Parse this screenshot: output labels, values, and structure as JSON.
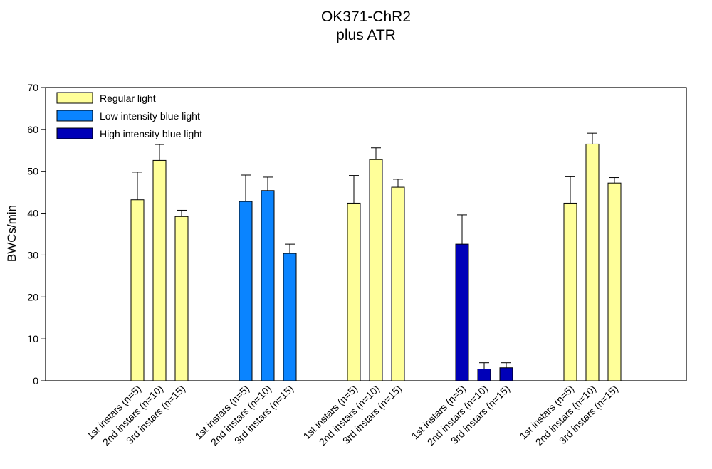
{
  "chart_data": {
    "type": "bar",
    "title": [
      "OK371-ChR2",
      "plus ATR"
    ],
    "ylabel": "BWCs/min",
    "xlabel": "",
    "ylim": [
      0,
      70
    ],
    "yticks": [
      0,
      10,
      20,
      30,
      40,
      50,
      60,
      70
    ],
    "grid": false,
    "legend_position": "top-left",
    "legend": [
      {
        "name": "Regular light",
        "color": "#ffff99"
      },
      {
        "name": "Low intensity blue light",
        "color": "#0a84ff"
      },
      {
        "name": "High intensity blue light",
        "color": "#0000b8"
      }
    ],
    "groups": [
      {
        "light": "Regular light",
        "color": "#ffff99",
        "bars": [
          {
            "label": "1st instars (n=5)",
            "value": 43.2,
            "error": 6.6
          },
          {
            "label": "2nd instars (n=10)",
            "value": 52.6,
            "error": 3.8
          },
          {
            "label": "3rd instars (n=15)",
            "value": 39.2,
            "error": 1.5
          }
        ]
      },
      {
        "light": "Low intensity blue light",
        "color": "#0a84ff",
        "bars": [
          {
            "label": "1st instars (n=5)",
            "value": 42.8,
            "error": 6.3
          },
          {
            "label": "2nd instars (n=10)",
            "value": 45.4,
            "error": 3.2
          },
          {
            "label": "3rd instars (n=15)",
            "value": 30.4,
            "error": 2.2
          }
        ]
      },
      {
        "light": "Regular light",
        "color": "#ffff99",
        "bars": [
          {
            "label": "1st instars (n=5)",
            "value": 42.4,
            "error": 6.6
          },
          {
            "label": "2nd instars (n=10)",
            "value": 52.8,
            "error": 2.8
          },
          {
            "label": "3rd instars (n=15)",
            "value": 46.2,
            "error": 1.9
          }
        ]
      },
      {
        "light": "High intensity blue light",
        "color": "#0000b8",
        "bars": [
          {
            "label": "1st instars (n=5)",
            "value": 32.6,
            "error": 7.0
          },
          {
            "label": "2nd instars (n=10)",
            "value": 2.8,
            "error": 1.5
          },
          {
            "label": "3rd instars (n=15)",
            "value": 3.1,
            "error": 1.2
          }
        ]
      },
      {
        "light": "Regular light",
        "color": "#ffff99",
        "bars": [
          {
            "label": "1st instars (n=5)",
            "value": 42.4,
            "error": 6.3
          },
          {
            "label": "2nd instars (n=10)",
            "value": 56.5,
            "error": 2.6
          },
          {
            "label": "3rd instars (n=15)",
            "value": 47.2,
            "error": 1.3
          }
        ]
      }
    ]
  }
}
